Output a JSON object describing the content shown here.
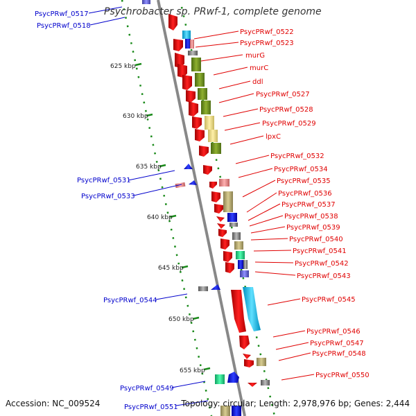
{
  "title": "Psychrobacter sp. PRwf-1, complete genome",
  "accession": "Accession: NC_009524",
  "summary": "Topology: circular; Length: 2,978,976 bp; Genes: 2,444",
  "colors": {
    "forward_label": "#e00000",
    "reverse_label": "#0000cc",
    "tick": "#1a8a1a",
    "backbone": "#888888"
  },
  "kbp_ticks": [
    "625 kbp",
    "630 kbp",
    "635 kbp",
    "640 kbp",
    "645 kbp",
    "650 kbp",
    "655 kbp"
  ],
  "forward_labels": [
    "PsycPRwf_0522",
    "PsycPRwf_0523",
    "murG",
    "murC",
    "ddl",
    "PsycPRwf_0527",
    "PsycPRwf_0528",
    "PsycPRwf_0529",
    "lpxC",
    "PsycPRwf_0532",
    "PsycPRwf_0534",
    "PsycPRwf_0535",
    "PsycPRwf_0536",
    "PsycPRwf_0537",
    "PsycPRwf_0538",
    "PsycPRwf_0539",
    "PsycPRwf_0540",
    "PsycPRwf_0541",
    "PsycPRwf_0542",
    "PsycPRwf_0543",
    "PsycPRwf_0545",
    "PsycPRwf_0546",
    "PsycPRwf_0547",
    "PsycPRwf_0548",
    "PsycPRwf_0550"
  ],
  "reverse_labels": [
    "PsycPRwf_0517",
    "PsycPRwf_0518",
    "PsycPRwf_0531",
    "PsycPRwf_0533",
    "PsycPRwf_0544",
    "PsycPRwf_0549",
    "PsycPRwf_0551"
  ]
}
